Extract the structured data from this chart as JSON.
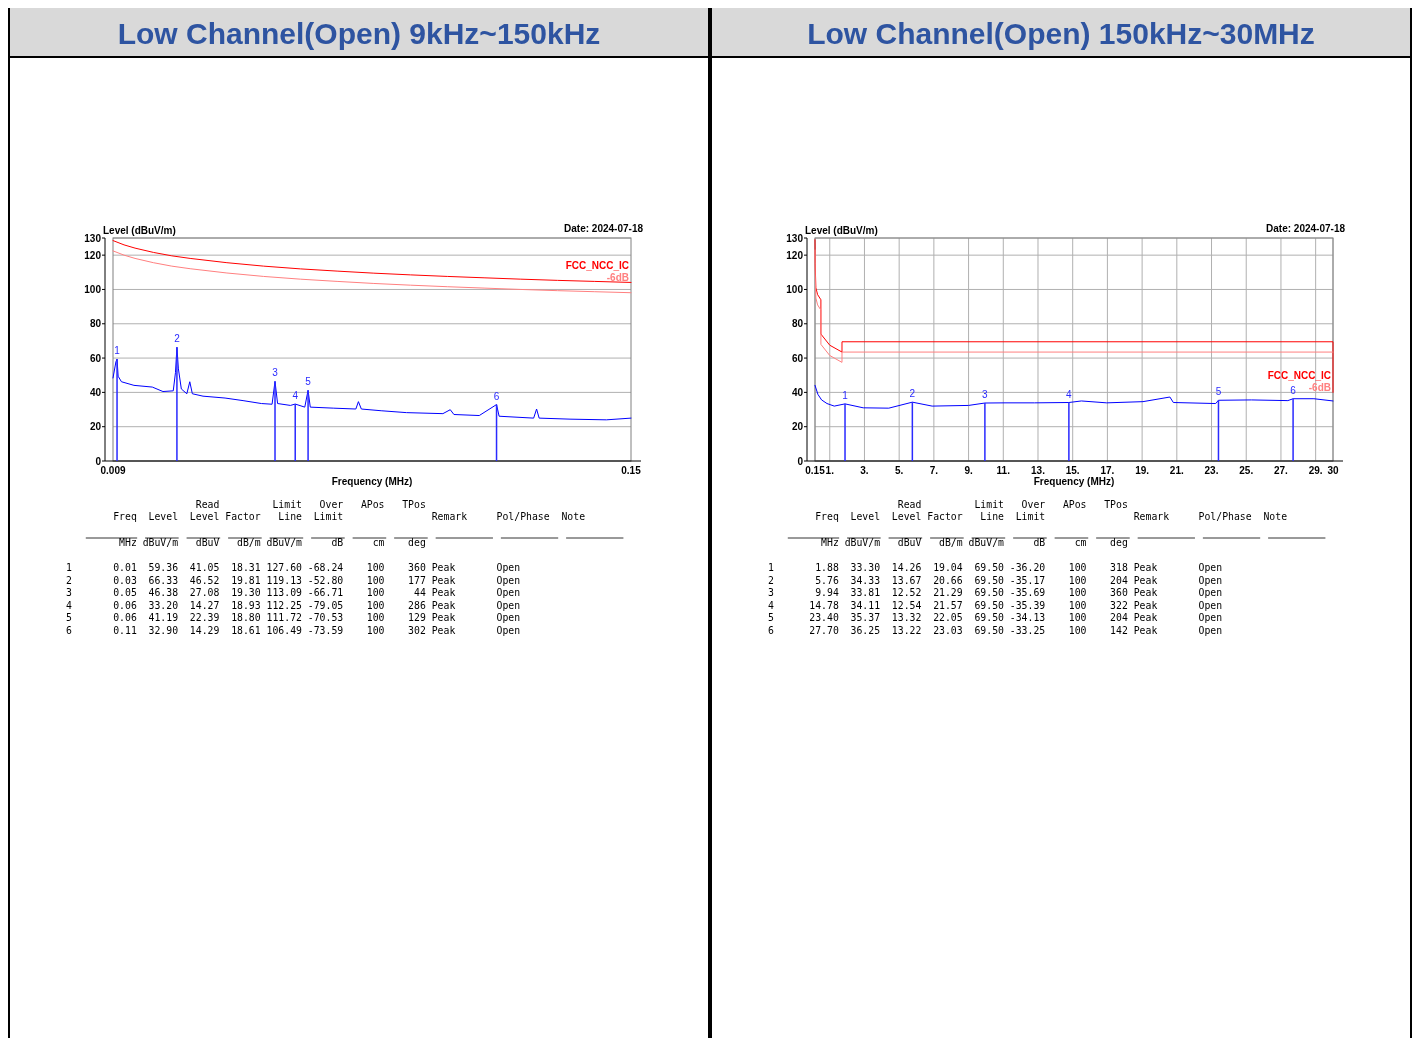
{
  "chart_data": [
    {
      "type": "line",
      "title": "Low Channel(Open) 9kHz~150kHz",
      "ylabel": "Level (dBuV/m)",
      "xlabel": "Frequency (MHz)",
      "xlim": [
        0.009,
        0.15
      ],
      "xticks": [
        0.009,
        0.15
      ],
      "ylim": [
        0,
        130
      ],
      "yticks": [
        0,
        20,
        40,
        60,
        80,
        100,
        120,
        130
      ],
      "grid": "y",
      "annotations": [
        "Date: 2024-07-18",
        "                      Read         Limit   Over   APos   TPos",
        "        Freq  Level  Level Factor   Line  Limit               Remark     Pol/Phase  Note",
        "         MHz dBuV/m   dBuV   dB/m dBuV/m     dB     cm    deg",
        "1       0.01  59.36  41.05  18.31 127.60 -68.24    100    360 Peak       Open",
        "2       0.03  66.33  46.52  19.81 119.13 -52.80    100    177 Peak       Open",
        "3       0.05  46.38  27.08  19.30 113.09 -66.71    100     44 Peak       Open",
        "4       0.06  33.20  14.27  18.93 112.25 -79.05    100    286 Peak       Open",
        "5       0.06  41.19  22.39  18.80 111.72 -70.53    100    129 Peak       Open",
        "6       0.11  32.90  14.29  18.61 106.49 -73.59    100    302 Peak       Open",
        {
          "text": "1",
          "x": 0.0101,
          "y": 59.4
        },
        {
          "text": "2",
          "x": 0.0264,
          "y": 66.3
        },
        {
          "text": "3",
          "x": 0.0531,
          "y": 46.4
        },
        {
          "text": "4",
          "x": 0.0586,
          "y": 33.2
        },
        {
          "text": "5",
          "x": 0.0621,
          "y": 41.2
        },
        {
          "text": "6",
          "x": 0.1134,
          "y": 32.9
        }
      ],
      "series": [
        {
          "name": "FCC_NCC_IC",
          "color": "#ff0000",
          "x": [
            0.009,
            0.012,
            0.015,
            0.02,
            0.025,
            0.03,
            0.04,
            0.05,
            0.06,
            0.07,
            0.08,
            0.09,
            0.1,
            0.11,
            0.12,
            0.13,
            0.14,
            0.15
          ],
          "values": [
            128.5,
            126,
            124.1,
            121.6,
            119.6,
            118.1,
            115.6,
            113.6,
            112,
            110.7,
            109.5,
            108.5,
            107.6,
            106.8,
            106,
            105.3,
            104.7,
            104.1
          ]
        },
        {
          "name": "-6dB",
          "color": "#ff8080",
          "x": [
            0.009,
            0.012,
            0.015,
            0.02,
            0.025,
            0.03,
            0.04,
            0.05,
            0.06,
            0.07,
            0.08,
            0.09,
            0.1,
            0.11,
            0.12,
            0.13,
            0.14,
            0.15
          ],
          "values": [
            122.5,
            120,
            118.1,
            115.6,
            113.6,
            112.1,
            109.6,
            107.6,
            106,
            104.7,
            103.5,
            102.5,
            101.6,
            100.8,
            100,
            99.3,
            98.7,
            98.1
          ]
        },
        {
          "color": "#0000ff",
          "x": [
            0.009,
            0.0098,
            0.0101,
            0.0104,
            0.0113,
            0.0147,
            0.0197,
            0.0226,
            0.0254,
            0.026,
            0.0264,
            0.0268,
            0.0276,
            0.0291,
            0.0299,
            0.0306,
            0.0335,
            0.0395,
            0.0444,
            0.0494,
            0.0523,
            0.0531,
            0.0538,
            0.0573,
            0.0586,
            0.0612,
            0.0621,
            0.0627,
            0.0691,
            0.0751,
            0.0758,
            0.0766,
            0.082,
            0.0889,
            0.0988,
            0.1008,
            0.1018,
            0.1087,
            0.1134,
            0.1141,
            0.1235,
            0.1243,
            0.125,
            0.1334,
            0.1433,
            0.15
          ],
          "values": [
            48.4,
            57.9,
            59.4,
            49.4,
            46.2,
            44.1,
            43.1,
            40.5,
            40.9,
            51.5,
            66.3,
            53.7,
            42,
            39.2,
            46.2,
            39.2,
            37.8,
            36.7,
            35.2,
            33.5,
            33.1,
            46.4,
            33.5,
            32.4,
            33.2,
            31.4,
            41.2,
            31.4,
            30.8,
            30.3,
            34.6,
            30.3,
            29.3,
            28.2,
            27.6,
            29.9,
            27.1,
            26.5,
            32.9,
            26.1,
            25,
            30.3,
            25,
            24.4,
            24,
            25
          ]
        },
        {
          "type": "bar",
          "color": "#2a2aff",
          "x": [
            0.0101,
            0.0264,
            0.0531,
            0.0586,
            0.0621,
            0.1134
          ],
          "values": [
            59.4,
            66.3,
            46.4,
            33.2,
            41.2,
            32.9
          ]
        }
      ]
    },
    {
      "type": "line",
      "title": "Low Channel(Open) 150kHz~30MHz",
      "ylabel": "Level (dBuV/m)",
      "xlabel": "Frequency (MHz)",
      "xlim": [
        0.15,
        30
      ],
      "xticks": [
        0.15,
        {
          "value": 1,
          "label": "1."
        },
        {
          "value": 3,
          "label": "3."
        },
        {
          "value": 5,
          "label": "5."
        },
        {
          "value": 7,
          "label": "7."
        },
        {
          "value": 9,
          "label": "9."
        },
        {
          "value": 11,
          "label": "11."
        },
        {
          "value": 13,
          "label": "13."
        },
        {
          "value": 15,
          "label": "15."
        },
        {
          "value": 17,
          "label": "17."
        },
        {
          "value": 19,
          "label": "19."
        },
        {
          "value": 21,
          "label": "21."
        },
        {
          "value": 23,
          "label": "23."
        },
        {
          "value": 25,
          "label": "25."
        },
        {
          "value": 27,
          "label": "27."
        },
        {
          "value": 29,
          "label": "29."
        },
        30
      ],
      "ylim": [
        0,
        130
      ],
      "yticks": [
        0,
        20,
        40,
        60,
        80,
        100,
        120,
        130
      ],
      "grid": true,
      "annotations": [
        "Date: 2024-07-18",
        "                      Read         Limit   Over   APos   TPos",
        "        Freq  Level  Level Factor   Line  Limit               Remark     Pol/Phase  Note",
        "         MHz dBuV/m   dBuV   dB/m dBuV/m     dB     cm    deg",
        "1       1.88  33.30  14.26  19.04  69.50 -36.20    100    318 Peak       Open",
        "2       5.76  34.33  13.67  20.66  69.50 -35.17    100    204 Peak       Open",
        "3       9.94  33.81  12.52  21.29  69.50 -35.69    100    360 Peak       Open",
        "4      14.78  34.11  12.54  21.57  69.50 -35.39    100    322 Peak       Open",
        "5      23.40  35.37  13.32  22.05  69.50 -34.13    100    204 Peak       Open",
        "6      27.70  36.25  13.22  23.03  69.50 -33.25    100    142 Peak       Open",
        {
          "text": "1",
          "x": 1.88,
          "y": 33.3
        },
        {
          "text": "2",
          "x": 5.76,
          "y": 34.3
        },
        {
          "text": "3",
          "x": 9.94,
          "y": 33.8
        },
        {
          "text": "4",
          "x": 14.78,
          "y": 34.1
        },
        {
          "text": "5",
          "x": 23.4,
          "y": 35.4
        },
        {
          "text": "6",
          "x": 27.7,
          "y": 36.3
        }
      ],
      "series": [
        {
          "name": "FCC_NCC_IC",
          "color": "#ff0000",
          "x": [
            0.15,
            0.16,
            0.2,
            0.3,
            0.49,
            0.49,
            1,
            1.705,
            1.705,
            30,
            30
          ],
          "values": [
            129,
            115,
            101,
            97,
            94,
            74,
            67.5,
            63.5,
            69.5,
            69.5,
            40
          ]
        },
        {
          "name": "-6dB",
          "color": "#ff8080",
          "x": [
            0.15,
            0.16,
            0.2,
            0.3,
            0.49,
            0.49,
            1,
            1.705,
            1.705,
            30
          ],
          "values": [
            123,
            109,
            95,
            91,
            88,
            68,
            61.5,
            57.5,
            63.5,
            63.5
          ]
        },
        {
          "color": "#0000ff",
          "x": [
            0.15,
            0.32,
            0.53,
            0.84,
            1.26,
            1.88,
            2.93,
            4.4,
            5.76,
            6.9,
            9,
            9.94,
            11.1,
            12.8,
            14.78,
            15.5,
            16.96,
            19.05,
            20.6,
            20.8,
            23.24,
            23.4,
            25.3,
            27.4,
            27.7,
            28.9,
            30
          ],
          "values": [
            44.1,
            38.8,
            35.6,
            33.5,
            32,
            33.3,
            31,
            30.8,
            34.3,
            32,
            32.4,
            33.8,
            33.9,
            33.9,
            34.1,
            35,
            33.9,
            34.6,
            37.3,
            34.1,
            33.5,
            35.4,
            35.6,
            35.2,
            36.3,
            36.3,
            35
          ]
        },
        {
          "type": "bar",
          "color": "#2a2aff",
          "x": [
            1.88,
            5.76,
            9.94,
            14.78,
            23.4,
            27.7
          ],
          "values": [
            33.3,
            34.3,
            33.8,
            34.1,
            35.4,
            36.3
          ]
        }
      ]
    }
  ]
}
